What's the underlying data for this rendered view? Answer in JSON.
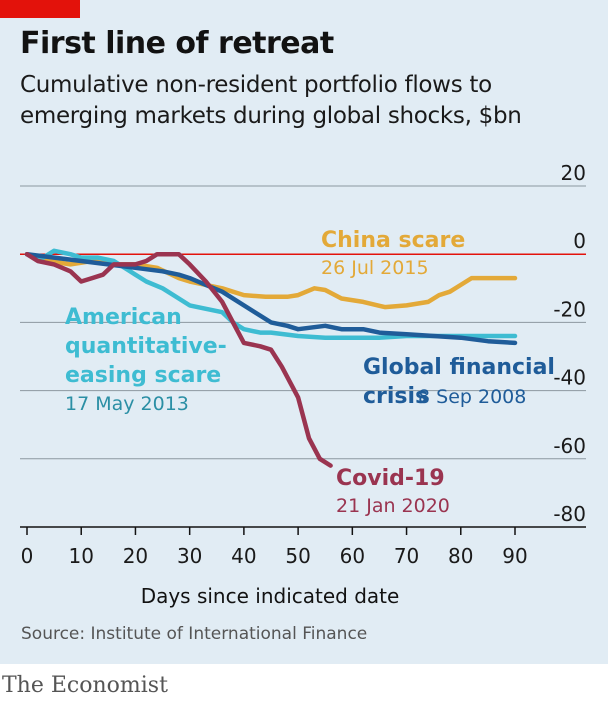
{
  "header": {
    "title": "First line of retreat",
    "subtitle": "Cumulative non-resident portfolio flows to emerging markets during global shocks, $bn"
  },
  "footer": {
    "source": "Source: Institute of International Finance",
    "brand": "The Economist"
  },
  "colors": {
    "background": "#e1ecf4",
    "accent": "#e3120b",
    "china": "#e3a938",
    "qe": "#3ebcd2",
    "gfc": "#1f5c99",
    "covid": "#9a3450"
  },
  "chart_data": {
    "type": "line",
    "xlabel": "Days since indicated date",
    "ylabel": "",
    "xlim": [
      0,
      90
    ],
    "ylim": [
      -80,
      20
    ],
    "xticks": [
      0,
      10,
      20,
      30,
      40,
      50,
      60,
      70,
      80,
      90
    ],
    "yticks": [
      20,
      0,
      -20,
      -40,
      -60,
      -80
    ],
    "yticks_labels": [
      "20",
      "0",
      "-20",
      "-40",
      "-60",
      "-80"
    ],
    "grid": true,
    "series": [
      {
        "key": "china",
        "name_lines": [
          "China scare"
        ],
        "date": "26 Jul 2015",
        "x": [
          0,
          4,
          8,
          12,
          16,
          20,
          24,
          28,
          30,
          33,
          36,
          40,
          44,
          48,
          50,
          53,
          55,
          58,
          62,
          66,
          70,
          74,
          76,
          78,
          80,
          82,
          85,
          88,
          90
        ],
        "y": [
          0,
          -2,
          -3,
          -2,
          -3,
          -3,
          -4,
          -7,
          -8,
          -9,
          -10,
          -12,
          -12.5,
          -12.5,
          -12,
          -10,
          -10.5,
          -13,
          -14,
          -15.5,
          -15,
          -14,
          -12,
          -11,
          -9,
          -7,
          -7,
          -7,
          -7
        ]
      },
      {
        "key": "qe",
        "name_lines": [
          "American",
          "quantitative-",
          "easing scare"
        ],
        "date": "17 May 2013",
        "x": [
          0,
          3,
          5,
          8,
          10,
          13,
          16,
          18,
          20,
          22,
          25,
          28,
          30,
          33,
          36,
          38,
          40,
          43,
          45,
          50,
          55,
          60,
          65,
          70,
          75,
          80,
          85,
          90
        ],
        "y": [
          0,
          -1,
          1,
          0,
          -1,
          -1,
          -2,
          -4,
          -6,
          -8,
          -10,
          -13,
          -15,
          -16,
          -17,
          -20,
          -22,
          -23,
          -23,
          -24,
          -24.5,
          -24.5,
          -24.5,
          -24,
          -24,
          -24,
          -24,
          -24
        ]
      },
      {
        "key": "gfc",
        "name_lines": [
          "Global financial",
          "crisis"
        ],
        "date": "8 Sep 2008",
        "x": [
          0,
          5,
          10,
          15,
          20,
          25,
          28,
          30,
          33,
          36,
          40,
          45,
          48,
          50,
          55,
          58,
          62,
          65,
          70,
          75,
          80,
          85,
          90
        ],
        "y": [
          0,
          -1,
          -2,
          -3,
          -4,
          -5,
          -6,
          -7,
          -9,
          -11,
          -15,
          -20,
          -21,
          -22,
          -21,
          -22,
          -22,
          -23,
          -23.5,
          -24,
          -24.5,
          -25.5,
          -26
        ]
      },
      {
        "key": "covid",
        "name_lines": [
          "Covid-19"
        ],
        "date": "21 Jan 2020",
        "x": [
          0,
          2,
          5,
          8,
          10,
          12,
          14,
          16,
          18,
          20,
          22,
          24,
          26,
          28,
          30,
          33,
          36,
          38,
          40,
          43,
          45,
          47,
          50,
          52,
          54,
          56
        ],
        "y": [
          0,
          -2,
          -3,
          -5,
          -8,
          -7,
          -6,
          -3,
          -3,
          -3,
          -2,
          0,
          0,
          0,
          -3,
          -8,
          -14,
          -20,
          -26,
          -27,
          -28,
          -33,
          -42,
          -54,
          -60,
          -62
        ]
      }
    ]
  }
}
